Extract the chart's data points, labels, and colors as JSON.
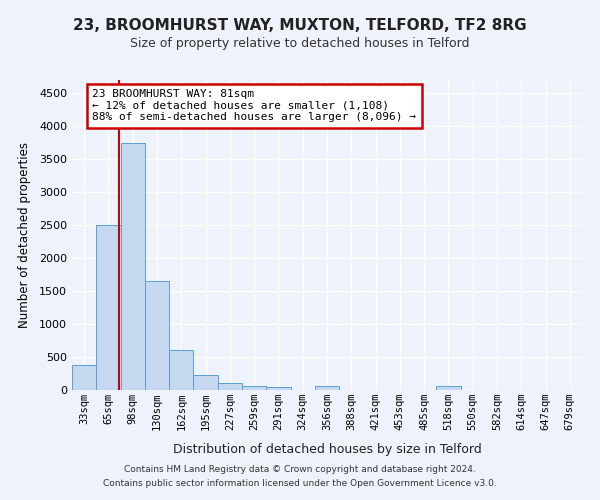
{
  "title": "23, BROOMHURST WAY, MUXTON, TELFORD, TF2 8RG",
  "subtitle": "Size of property relative to detached houses in Telford",
  "xlabel": "Distribution of detached houses by size in Telford",
  "ylabel": "Number of detached properties",
  "bar_color": "#c5d8f0",
  "bar_edge_color": "#5a9fd4",
  "categories": [
    "33sqm",
    "65sqm",
    "98sqm",
    "130sqm",
    "162sqm",
    "195sqm",
    "227sqm",
    "259sqm",
    "291sqm",
    "324sqm",
    "356sqm",
    "388sqm",
    "421sqm",
    "453sqm",
    "485sqm",
    "518sqm",
    "550sqm",
    "582sqm",
    "614sqm",
    "647sqm",
    "679sqm"
  ],
  "values": [
    375,
    2500,
    3750,
    1650,
    600,
    225,
    110,
    60,
    40,
    0,
    60,
    0,
    0,
    0,
    0,
    60,
    0,
    0,
    0,
    0,
    0
  ],
  "ylim": [
    0,
    4700
  ],
  "yticks": [
    0,
    500,
    1000,
    1500,
    2000,
    2500,
    3000,
    3500,
    4000,
    4500
  ],
  "redline_x": 1.45,
  "annotation_title": "23 BROOMHURST WAY: 81sqm",
  "annotation_line1": "← 12% of detached houses are smaller (1,108)",
  "annotation_line2": "88% of semi-detached houses are larger (8,096) →",
  "footer1": "Contains HM Land Registry data © Crown copyright and database right 2024.",
  "footer2": "Contains public sector information licensed under the Open Government Licence v3.0.",
  "background_color": "#eef2fb",
  "grid_color": "#ffffff",
  "annotation_box_color": "#ffffff",
  "annotation_box_edge": "#cc0000",
  "redline_color": "#cc0000",
  "title_fontsize": 11,
  "subtitle_fontsize": 9
}
